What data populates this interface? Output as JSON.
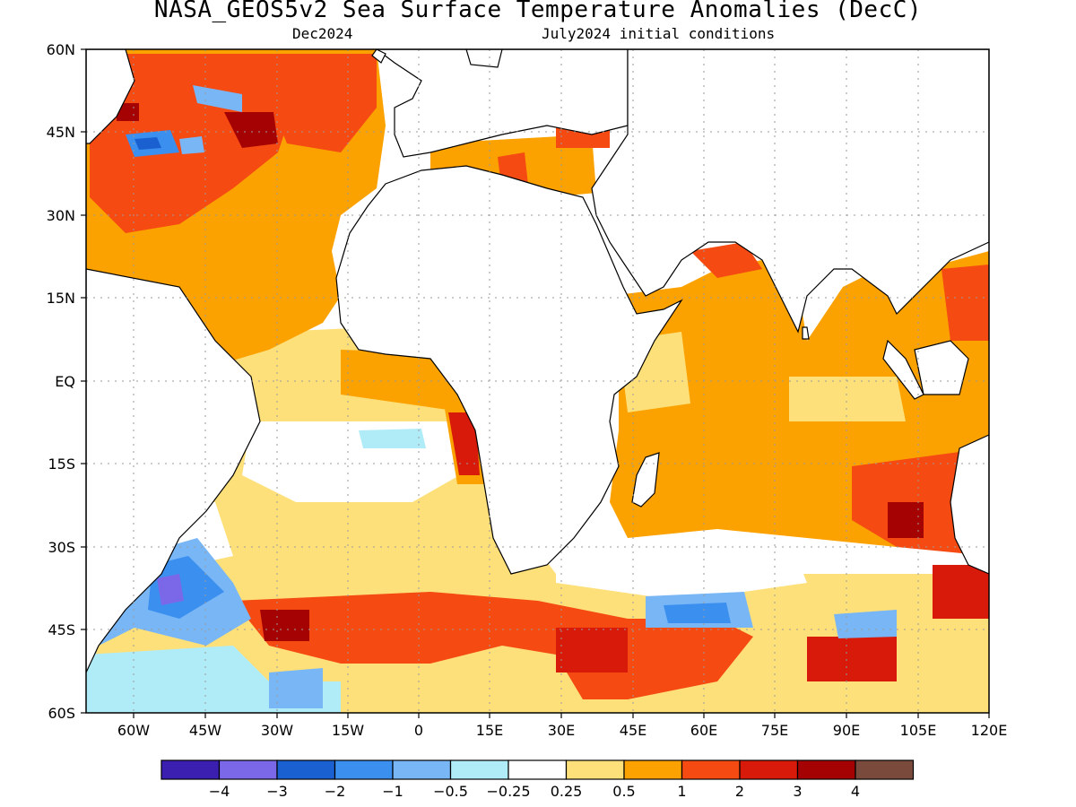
{
  "title": "NASA_GEOS5v2 Sea Surface Temperature Anomalies (DecC)",
  "subtitle_left": "Dec2024",
  "subtitle_right": "July2024 initial conditions",
  "lat_labels": [
    "60N",
    "45N",
    "30N",
    "15N",
    "EQ",
    "15S",
    "30S",
    "45S",
    "60S"
  ],
  "lon_labels": [
    "60W",
    "45W",
    "30W",
    "15W",
    "0",
    "15E",
    "30E",
    "45E",
    "60E",
    "75E",
    "90E",
    "105E",
    "120E"
  ],
  "colorbar": {
    "colors": [
      "#3a1fb0",
      "#7b68e8",
      "#1a60d0",
      "#3b8fef",
      "#79b6f5",
      "#b0ecf8",
      "#ffffff",
      "#fde07a",
      "#fba200",
      "#f54a12",
      "#d81a0a",
      "#a50303",
      "#7a4a3c"
    ],
    "labels": [
      "−4",
      "−3",
      "−2",
      "−1",
      "−0.5",
      "−0.25",
      "0.25",
      "0.5",
      "1",
      "2",
      "3",
      "4"
    ]
  }
}
